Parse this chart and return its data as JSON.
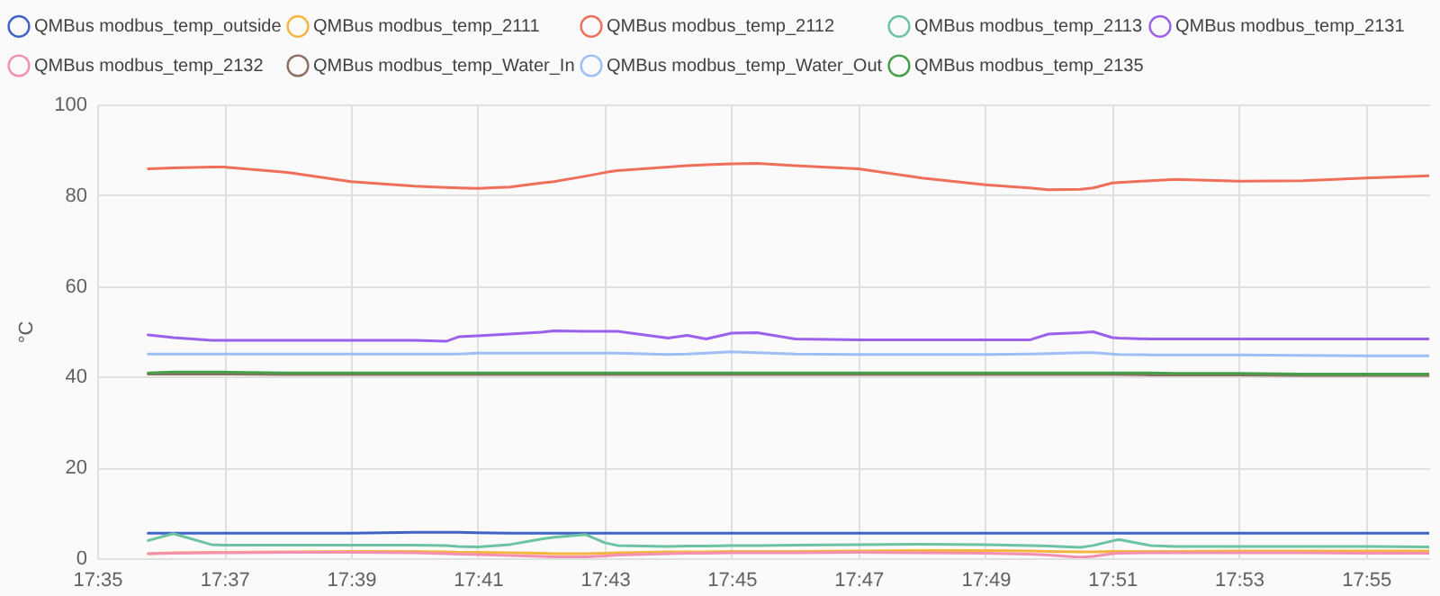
{
  "chart_data": {
    "type": "line",
    "ylabel": "°C",
    "x": [
      17.5967,
      17.6033,
      17.6133,
      17.6167,
      17.6333,
      17.65,
      17.6667,
      17.675,
      17.6783,
      17.6833,
      17.6917,
      17.7,
      17.7033,
      17.7117,
      17.7167,
      17.72,
      17.7333,
      17.7383,
      17.7433,
      17.75,
      17.7567,
      17.7667,
      17.7833,
      17.8,
      17.8167,
      17.8283,
      17.8333,
      17.8417,
      17.845,
      17.85,
      17.8517,
      17.86,
      17.8667,
      17.8833,
      17.9,
      17.9167,
      17.9333
    ],
    "series": [
      {
        "name": "QMBus modbus_temp_outside",
        "color": "#3f63c7",
        "values": [
          5.5,
          5.5,
          5.5,
          5.5,
          5.5,
          5.5,
          5.7,
          5.7,
          5.7,
          5.6,
          5.5,
          5.5,
          5.5,
          5.5,
          5.5,
          5.5,
          5.5,
          5.5,
          5.5,
          5.5,
          5.5,
          5.5,
          5.5,
          5.5,
          5.5,
          5.5,
          5.5,
          5.5,
          5.5,
          5.5,
          5.5,
          5.5,
          5.5,
          5.5,
          5.5,
          5.5,
          5.5
        ]
      },
      {
        "name": "QMBus modbus_temp_2111",
        "color": "#f4b63f",
        "values": [
          1.0,
          1.2,
          1.3,
          1.3,
          1.4,
          1.5,
          1.5,
          1.4,
          1.3,
          1.3,
          1.2,
          1.1,
          1.0,
          1.0,
          1.1,
          1.2,
          1.4,
          1.4,
          1.4,
          1.5,
          1.5,
          1.5,
          1.6,
          1.7,
          1.7,
          1.6,
          1.5,
          1.4,
          1.4,
          1.5,
          1.5,
          1.5,
          1.5,
          1.6,
          1.6,
          1.6,
          1.6
        ]
      },
      {
        "name": "QMBus modbus_temp_2112",
        "color": "#ef6f5b",
        "values": [
          85.8,
          86.0,
          86.2,
          86.2,
          85.0,
          83.0,
          82.0,
          81.7,
          81.6,
          81.5,
          81.8,
          82.7,
          83.0,
          84.2,
          85.0,
          85.4,
          86.2,
          86.5,
          86.7,
          86.9,
          87.0,
          86.5,
          85.8,
          83.8,
          82.3,
          81.6,
          81.2,
          81.3,
          81.6,
          82.7,
          82.8,
          83.2,
          83.5,
          83.1,
          83.2,
          83.8,
          84.3
        ]
      },
      {
        "name": "QMBus modbus_temp_2113",
        "color": "#6cc3a0",
        "values": [
          3.9,
          5.4,
          3.0,
          2.9,
          2.9,
          2.9,
          2.9,
          2.8,
          2.6,
          2.5,
          3.0,
          4.2,
          4.6,
          5.2,
          3.4,
          2.8,
          2.6,
          2.7,
          2.7,
          2.8,
          2.8,
          2.9,
          3.0,
          3.1,
          3.0,
          2.8,
          2.7,
          2.4,
          2.8,
          3.8,
          4.1,
          2.8,
          2.6,
          2.6,
          2.6,
          2.6,
          2.5
        ]
      },
      {
        "name": "QMBus modbus_temp_2131",
        "color": "#9c61ec",
        "values": [
          49.2,
          48.6,
          48.0,
          48.0,
          48.0,
          48.0,
          48.0,
          47.8,
          48.8,
          49.0,
          49.4,
          49.8,
          50.1,
          50.0,
          50.0,
          50.0,
          48.5,
          49.1,
          48.3,
          49.6,
          49.7,
          48.3,
          48.1,
          48.1,
          48.1,
          48.1,
          49.4,
          49.7,
          49.9,
          48.6,
          48.5,
          48.3,
          48.3,
          48.3,
          48.3,
          48.3,
          48.3
        ]
      },
      {
        "name": "QMBus modbus_temp_2132",
        "color": "#f48fb1",
        "values": [
          1.0,
          1.1,
          1.2,
          1.2,
          1.3,
          1.3,
          1.2,
          1.0,
          0.9,
          0.8,
          0.6,
          0.4,
          0.3,
          0.3,
          0.5,
          0.7,
          1.0,
          1.1,
          1.1,
          1.2,
          1.2,
          1.2,
          1.3,
          1.2,
          1.1,
          0.9,
          0.7,
          0.2,
          0.4,
          1.0,
          1.1,
          1.2,
          1.2,
          1.2,
          1.2,
          1.1,
          1.1
        ]
      },
      {
        "name": "QMBus modbus_temp_Water_In",
        "color": "#8d6e63",
        "values": [
          40.6,
          40.6,
          40.6,
          40.6,
          40.5,
          40.5,
          40.5,
          40.5,
          40.5,
          40.5,
          40.5,
          40.5,
          40.5,
          40.5,
          40.5,
          40.5,
          40.5,
          40.5,
          40.5,
          40.5,
          40.5,
          40.5,
          40.5,
          40.5,
          40.5,
          40.5,
          40.5,
          40.5,
          40.5,
          40.5,
          40.5,
          40.4,
          40.4,
          40.4,
          40.3,
          40.3,
          40.3
        ]
      },
      {
        "name": "QMBus modbus_temp_Water_Out",
        "color": "#9dbff5",
        "values": [
          45.0,
          45.0,
          45.0,
          45.0,
          45.0,
          45.0,
          45.0,
          45.0,
          45.0,
          45.2,
          45.2,
          45.2,
          45.2,
          45.2,
          45.2,
          45.2,
          44.9,
          45.0,
          45.2,
          45.5,
          45.3,
          45.0,
          44.9,
          44.9,
          44.9,
          45.0,
          45.1,
          45.3,
          45.3,
          45.0,
          44.9,
          44.8,
          44.8,
          44.8,
          44.7,
          44.6,
          44.6
        ]
      },
      {
        "name": "QMBus modbus_temp_2135",
        "color": "#43a047",
        "values": [
          40.8,
          41.0,
          41.0,
          41.0,
          40.8,
          40.8,
          40.8,
          40.8,
          40.8,
          40.8,
          40.8,
          40.8,
          40.8,
          40.8,
          40.8,
          40.8,
          40.8,
          40.8,
          40.8,
          40.8,
          40.8,
          40.8,
          40.8,
          40.8,
          40.8,
          40.8,
          40.8,
          40.8,
          40.8,
          40.8,
          40.8,
          40.8,
          40.7,
          40.7,
          40.6,
          40.6,
          40.6
        ]
      }
    ],
    "xlim": [
      17.5833,
      17.9333
    ],
    "ylim": [
      0,
      100
    ],
    "xticks": [
      {
        "value": 17.5833,
        "label": "17:35"
      },
      {
        "value": 17.6167,
        "label": "17:37"
      },
      {
        "value": 17.65,
        "label": "17:39"
      },
      {
        "value": 17.6833,
        "label": "17:41"
      },
      {
        "value": 17.7167,
        "label": "17:43"
      },
      {
        "value": 17.75,
        "label": "17:45"
      },
      {
        "value": 17.7833,
        "label": "17:47"
      },
      {
        "value": 17.8167,
        "label": "17:49"
      },
      {
        "value": 17.85,
        "label": "17:51"
      },
      {
        "value": 17.8833,
        "label": "17:53"
      },
      {
        "value": 17.9167,
        "label": "17:55"
      }
    ],
    "yticks": [
      0,
      20,
      40,
      60,
      80,
      100
    ],
    "grid": true,
    "legend": "top",
    "line_style": "solid"
  }
}
